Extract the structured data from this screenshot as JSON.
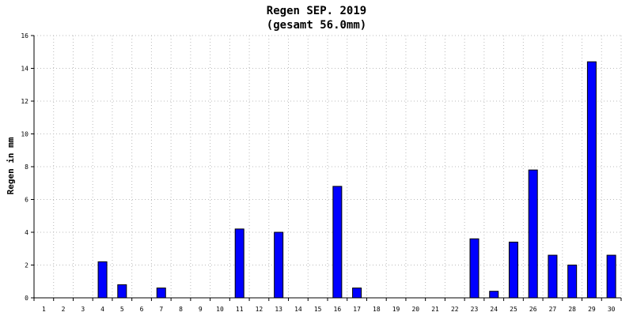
{
  "chart_data": {
    "type": "bar",
    "title": "Regen SEP. 2019",
    "subtitle": "(gesamt 56.0mm)",
    "ylabel": "Regen in mm",
    "xlabel": "",
    "categories": [
      "1",
      "2",
      "3",
      "4",
      "5",
      "6",
      "7",
      "8",
      "9",
      "10",
      "11",
      "12",
      "13",
      "14",
      "15",
      "16",
      "17",
      "18",
      "19",
      "20",
      "21",
      "22",
      "23",
      "24",
      "25",
      "26",
      "27",
      "28",
      "29",
      "30"
    ],
    "values": [
      0,
      0,
      0,
      2.2,
      0.8,
      0,
      0.6,
      0,
      0,
      0,
      4.2,
      0,
      4.0,
      0,
      0,
      6.8,
      0.6,
      0,
      0,
      0,
      0,
      0,
      3.6,
      0.4,
      3.4,
      7.8,
      2.6,
      2.0,
      14.4,
      2.6
    ],
    "ylim": [
      0,
      16
    ],
    "yticks": [
      0,
      2,
      4,
      6,
      8,
      10,
      12,
      14,
      16
    ],
    "grid": true,
    "colors": {
      "bar": "#0000ff",
      "bar_border": "#000000",
      "grid": "#bbbbbb"
    }
  }
}
